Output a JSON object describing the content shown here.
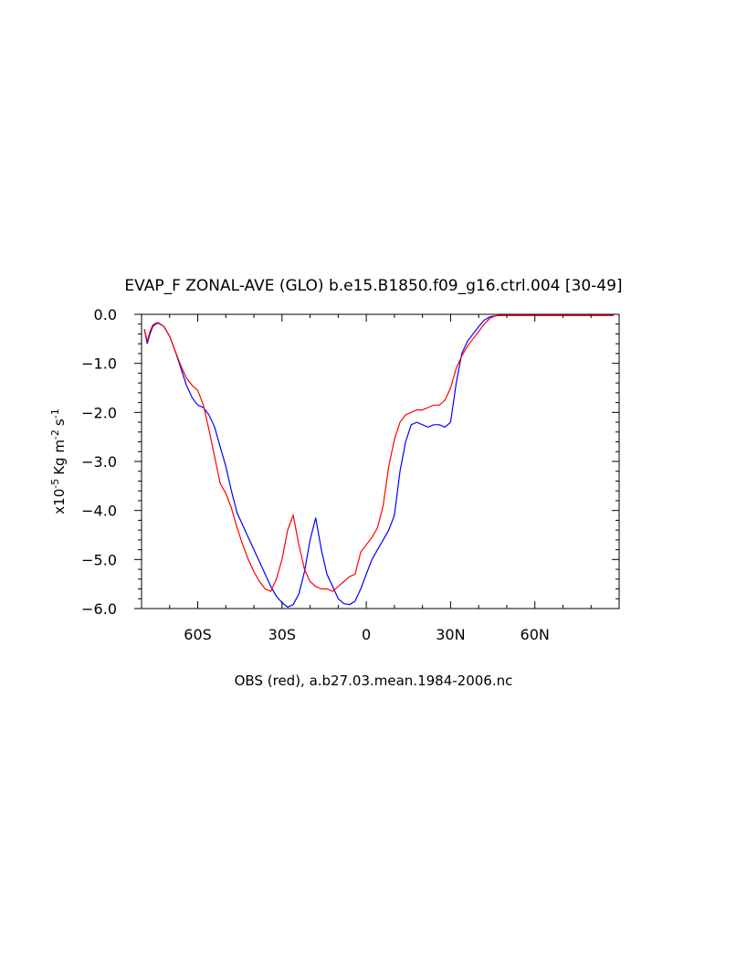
{
  "chart_data": {
    "type": "line",
    "title": "EVAP_F ZONAL-AVE (GLO) b.e15.B1850.f09_g16.ctrl.004 [30-49]",
    "ylabel": {
      "prefix": "x10",
      "exp": "-5",
      "units": "Kg m",
      "units_exp": "-2",
      "units2": "s",
      "units2_exp": "-1"
    },
    "caption": "OBS (red), a.b27.03.mean.1984-2006.nc",
    "xlim": [
      -80,
      90
    ],
    "ylim": [
      -6.0,
      0.0
    ],
    "x_ticks": [
      {
        "value": -60,
        "label": "60S"
      },
      {
        "value": -30,
        "label": "30S"
      },
      {
        "value": 0,
        "label": "0"
      },
      {
        "value": 30,
        "label": "30N"
      },
      {
        "value": 60,
        "label": "60N"
      }
    ],
    "y_ticks": [
      {
        "value": 0.0,
        "label": "0.0"
      },
      {
        "value": -1.0,
        "label": "−1.0"
      },
      {
        "value": -2.0,
        "label": "−2.0"
      },
      {
        "value": -3.0,
        "label": "−3.0"
      },
      {
        "value": -4.0,
        "label": "−4.0"
      },
      {
        "value": -5.0,
        "label": "−5.0"
      },
      {
        "value": -6.0,
        "label": "−6.0"
      }
    ],
    "series": [
      {
        "color": "#0000ff",
        "x": [
          -79,
          -78,
          -77,
          -76,
          -75,
          -74,
          -72,
          -70,
          -68,
          -66,
          -64,
          -62,
          -60,
          -58,
          -56,
          -54,
          -52,
          -50,
          -48,
          -46,
          -44,
          -42,
          -40,
          -38,
          -36,
          -34,
          -32,
          -30,
          -28,
          -26,
          -24,
          -22,
          -20,
          -18,
          -16,
          -14,
          -12,
          -10,
          -8,
          -6,
          -4,
          -2,
          0,
          2,
          4,
          6,
          8,
          10,
          12,
          14,
          16,
          18,
          20,
          22,
          24,
          26,
          28,
          30,
          32,
          34,
          36,
          38,
          40,
          42,
          44,
          46,
          48,
          50,
          52,
          54,
          56,
          58,
          60,
          62,
          64,
          66,
          68,
          70,
          72,
          74,
          76,
          78,
          80,
          82,
          84,
          86,
          88
        ],
        "y": [
          -0.3,
          -0.6,
          -0.4,
          -0.25,
          -0.2,
          -0.18,
          -0.25,
          -0.45,
          -0.75,
          -1.1,
          -1.45,
          -1.7,
          -1.85,
          -1.9,
          -2.05,
          -2.3,
          -2.7,
          -3.1,
          -3.6,
          -4.05,
          -4.3,
          -4.55,
          -4.8,
          -5.05,
          -5.3,
          -5.55,
          -5.75,
          -5.88,
          -5.97,
          -5.92,
          -5.7,
          -5.25,
          -4.6,
          -4.15,
          -4.8,
          -5.3,
          -5.55,
          -5.8,
          -5.9,
          -5.92,
          -5.85,
          -5.6,
          -5.3,
          -5.0,
          -4.8,
          -4.6,
          -4.4,
          -4.1,
          -3.2,
          -2.6,
          -2.25,
          -2.2,
          -2.25,
          -2.3,
          -2.25,
          -2.25,
          -2.3,
          -2.2,
          -1.4,
          -0.8,
          -0.55,
          -0.4,
          -0.25,
          -0.12,
          -0.05,
          -0.03,
          -0.02,
          -0.02,
          -0.02,
          -0.02,
          -0.02,
          -0.02,
          -0.02,
          -0.02,
          -0.02,
          -0.02,
          -0.02,
          -0.02,
          -0.02,
          -0.02,
          -0.02,
          -0.02,
          -0.02,
          -0.02,
          -0.02,
          -0.02,
          -0.02
        ]
      },
      {
        "color": "#ff0000",
        "x": [
          -79,
          -78,
          -77,
          -76,
          -75,
          -74,
          -72,
          -70,
          -68,
          -66,
          -64,
          -62,
          -60,
          -58,
          -56,
          -54,
          -52,
          -50,
          -48,
          -46,
          -44,
          -42,
          -40,
          -38,
          -36,
          -34,
          -32,
          -30,
          -28,
          -26,
          -24,
          -22,
          -20,
          -18,
          -16,
          -14,
          -12,
          -10,
          -8,
          -6,
          -4,
          -2,
          0,
          2,
          4,
          6,
          8,
          10,
          12,
          14,
          16,
          18,
          20,
          22,
          24,
          26,
          28,
          30,
          32,
          34,
          36,
          38,
          40,
          42,
          44,
          46,
          48,
          50,
          52,
          54,
          56,
          58,
          60,
          62,
          64,
          66,
          68,
          70,
          72,
          74,
          76,
          78,
          80,
          82,
          84,
          86,
          88
        ],
        "y": [
          -0.3,
          -0.55,
          -0.35,
          -0.22,
          -0.18,
          -0.17,
          -0.25,
          -0.45,
          -0.75,
          -1.05,
          -1.3,
          -1.45,
          -1.55,
          -1.85,
          -2.35,
          -2.9,
          -3.45,
          -3.65,
          -3.95,
          -4.35,
          -4.7,
          -5.0,
          -5.25,
          -5.45,
          -5.6,
          -5.65,
          -5.4,
          -5.0,
          -4.4,
          -4.1,
          -4.7,
          -5.2,
          -5.45,
          -5.55,
          -5.6,
          -5.6,
          -5.65,
          -5.55,
          -5.45,
          -5.35,
          -5.3,
          -4.85,
          -4.7,
          -4.55,
          -4.35,
          -3.9,
          -3.1,
          -2.55,
          -2.2,
          -2.05,
          -2.0,
          -1.95,
          -1.95,
          -1.9,
          -1.85,
          -1.85,
          -1.75,
          -1.5,
          -1.1,
          -0.85,
          -0.65,
          -0.5,
          -0.35,
          -0.2,
          -0.08,
          -0.03,
          -0.02,
          -0.02,
          -0.02,
          -0.02,
          -0.02,
          -0.02,
          -0.02,
          -0.02,
          -0.02,
          -0.02,
          -0.02,
          -0.02,
          -0.02,
          -0.02,
          -0.02,
          -0.02,
          -0.02,
          -0.02,
          -0.02,
          -0.02,
          -0.02
        ]
      }
    ],
    "grid": false,
    "legend": "none"
  }
}
